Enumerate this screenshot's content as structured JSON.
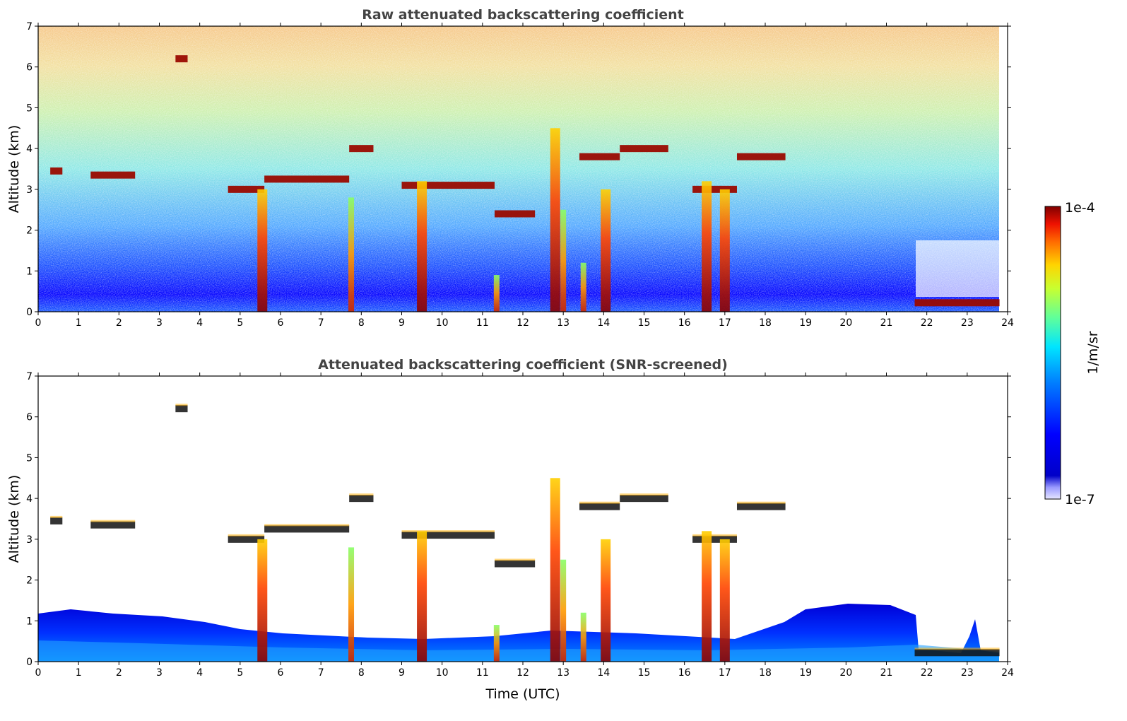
{
  "chart_data": [
    {
      "type": "heatmap",
      "title": "Raw attenuated backscattering coefficient",
      "xlabel": "",
      "ylabel": "Altitude (km)",
      "xlim": [
        0,
        24
      ],
      "ylim": [
        0,
        7
      ],
      "x_ticks": [
        "0",
        "1",
        "2",
        "3",
        "4",
        "5",
        "6",
        "7",
        "8",
        "9",
        "10",
        "11",
        "12",
        "13",
        "14",
        "15",
        "16",
        "17",
        "18",
        "19",
        "20",
        "21",
        "22",
        "23",
        "24"
      ],
      "y_ticks": [
        "0",
        "1",
        "2",
        "3",
        "4",
        "5",
        "6",
        "7"
      ],
      "cloud_layers": [
        {
          "t_start": 0.3,
          "t_end": 0.6,
          "alt_km": 3.45
        },
        {
          "t_start": 1.3,
          "t_end": 2.4,
          "alt_km": 3.35
        },
        {
          "t_start": 3.4,
          "t_end": 3.7,
          "alt_km": 6.2
        },
        {
          "t_start": 4.7,
          "t_end": 5.6,
          "alt_km": 3.0
        },
        {
          "t_start": 5.6,
          "t_end": 7.7,
          "alt_km": 3.25
        },
        {
          "t_start": 7.7,
          "t_end": 8.3,
          "alt_km": 4.0
        },
        {
          "t_start": 9.0,
          "t_end": 11.3,
          "alt_km": 3.1
        },
        {
          "t_start": 11.3,
          "t_end": 12.3,
          "alt_km": 2.4
        },
        {
          "t_start": 13.4,
          "t_end": 14.4,
          "alt_km": 3.8
        },
        {
          "t_start": 14.4,
          "t_end": 15.6,
          "alt_km": 4.0
        },
        {
          "t_start": 16.2,
          "t_end": 17.3,
          "alt_km": 3.0
        },
        {
          "t_start": 17.3,
          "t_end": 18.5,
          "alt_km": 3.8
        },
        {
          "t_start": 21.7,
          "t_end": 23.8,
          "alt_km": 0.22
        }
      ],
      "precip_shafts": [
        {
          "t": 5.55,
          "top_km": 3.0
        },
        {
          "t": 7.75,
          "top_km": 2.8
        },
        {
          "t": 9.5,
          "top_km": 3.2
        },
        {
          "t": 11.35,
          "top_km": 0.9
        },
        {
          "t": 12.8,
          "top_km": 4.5
        },
        {
          "t": 13.0,
          "top_km": 2.5
        },
        {
          "t": 13.5,
          "top_km": 1.2
        },
        {
          "t": 14.05,
          "top_km": 3.0
        },
        {
          "t": 16.55,
          "top_km": 3.2
        },
        {
          "t": 17.0,
          "top_km": 3.0
        }
      ]
    },
    {
      "type": "heatmap",
      "title": "Attenuated backscattering coefficient (SNR-screened)",
      "xlabel": "Time (UTC)",
      "ylabel": "Altitude (km)",
      "xlim": [
        0,
        24
      ],
      "ylim": [
        0,
        7
      ],
      "x_ticks": [
        "0",
        "1",
        "2",
        "3",
        "4",
        "5",
        "6",
        "7",
        "8",
        "9",
        "10",
        "11",
        "12",
        "13",
        "14",
        "15",
        "16",
        "17",
        "18",
        "19",
        "20",
        "21",
        "22",
        "23",
        "24"
      ],
      "y_ticks": [
        "0",
        "1",
        "2",
        "3",
        "4",
        "5",
        "6",
        "7"
      ]
    }
  ],
  "colorbar": {
    "label": "1/m/sr",
    "max_label": "1e-4",
    "min_label": "1e-7",
    "colormap": "jet",
    "colors": [
      "#00007f",
      "#0000ff",
      "#007fff",
      "#00ffff",
      "#7fff7f",
      "#ffff00",
      "#ff7f00",
      "#ff0000",
      "#7f0000"
    ]
  }
}
